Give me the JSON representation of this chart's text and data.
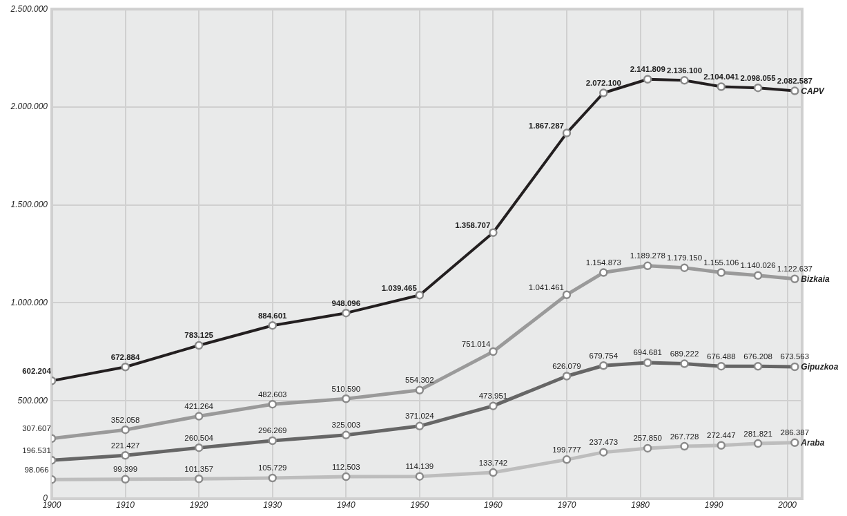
{
  "chart_data": {
    "type": "line",
    "x": [
      1900,
      1910,
      1920,
      1930,
      1940,
      1950,
      1960,
      1970,
      1975,
      1981,
      1986,
      1991,
      1996,
      2001
    ],
    "series": [
      {
        "name": "CAPV",
        "color": "#231f20",
        "values": [
          602204,
          672884,
          783125,
          884601,
          948096,
          1039465,
          1358707,
          1867287,
          2072100,
          2141809,
          2136100,
          2104041,
          2098055,
          2082587
        ],
        "value_labels": [
          "602.204",
          "672.884",
          "783.125",
          "884.601",
          "948.096",
          "1.039.465",
          "1.358.707",
          "1.867.287",
          "2.072.100",
          "2.141.809",
          "2.136.100",
          "2.104.041",
          "2.098.055",
          "2.082.587"
        ]
      },
      {
        "name": "Bizkaia",
        "color": "#9a9a9a",
        "values": [
          307607,
          352058,
          421264,
          482603,
          510590,
          554302,
          751014,
          1041461,
          1154873,
          1189278,
          1179150,
          1155106,
          1140026,
          1122637
        ],
        "value_labels": [
          "307.607",
          "352.058",
          "421.264",
          "482.603",
          "510.590",
          "554.302",
          "751.014",
          "1.041.461",
          "1.154.873",
          "1.189.278",
          "1.179.150",
          "1.155.106",
          "1.140.026",
          "1.122.637"
        ]
      },
      {
        "name": "Gipuzkoa",
        "color": "#666666",
        "values": [
          196531,
          221427,
          260504,
          296269,
          325003,
          371024,
          473951,
          626079,
          679754,
          694681,
          689222,
          676488,
          676208,
          673563
        ],
        "value_labels": [
          "196.531",
          "221.427",
          "260.504",
          "296.269",
          "325.003",
          "371.024",
          "473.951",
          "626.079",
          "679.754",
          "694.681",
          "689.222",
          "676.488",
          "676.208",
          "673.563"
        ]
      },
      {
        "name": "Araba",
        "color": "#bdbdbd",
        "values": [
          98066,
          99399,
          101357,
          105729,
          112503,
          114139,
          133742,
          199777,
          237473,
          257850,
          267728,
          272447,
          281821,
          286387
        ],
        "value_labels": [
          "98.066",
          "99.399",
          "101.357",
          "105.729",
          "112.503",
          "114.139",
          "133.742",
          "199.777",
          "237.473",
          "257.850",
          "267.728",
          "272.447",
          "281.821",
          "286.387"
        ]
      }
    ],
    "xlim": [
      1900,
      2002
    ],
    "xticks": [
      1900,
      1910,
      1920,
      1930,
      1940,
      1950,
      1960,
      1970,
      1980,
      1990,
      2000
    ],
    "ylim": [
      0,
      2500000
    ],
    "yticks": [
      {
        "value": 0,
        "label": "0"
      },
      {
        "value": 500000,
        "label": "500.000"
      },
      {
        "value": 1000000,
        "label": "1.000.000"
      },
      {
        "value": 1500000,
        "label": "1.500.000"
      },
      {
        "value": 2000000,
        "label": "2.000.000"
      },
      {
        "value": 2500000,
        "label": "2.500.000"
      }
    ],
    "grid": true,
    "legend": false,
    "marker": "circle",
    "line_style": "solid"
  }
}
